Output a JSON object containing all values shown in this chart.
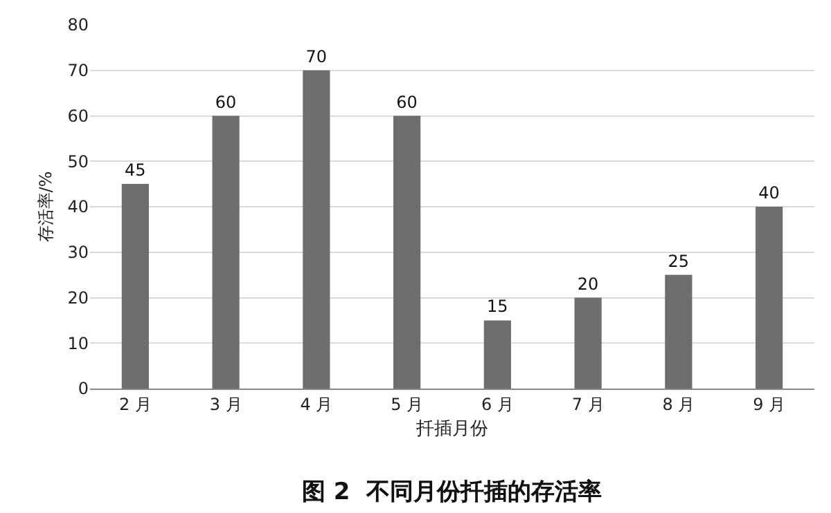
{
  "chart_data": {
    "type": "bar",
    "title": "图 2  不同月份扦插的存活率",
    "xlabel": "扦插月份",
    "ylabel": "存活率/%",
    "categories": [
      "2 月",
      "3 月",
      "4 月",
      "5 月",
      "6 月",
      "7 月",
      "8 月",
      "9 月"
    ],
    "values": [
      45,
      60,
      70,
      60,
      15,
      20,
      25,
      40
    ],
    "color": "#6e6e6e",
    "ylim": [
      0,
      80
    ],
    "yticks": [
      0,
      10,
      20,
      30,
      40,
      50,
      60,
      70,
      80
    ],
    "grid": "y",
    "data_labels": true
  }
}
